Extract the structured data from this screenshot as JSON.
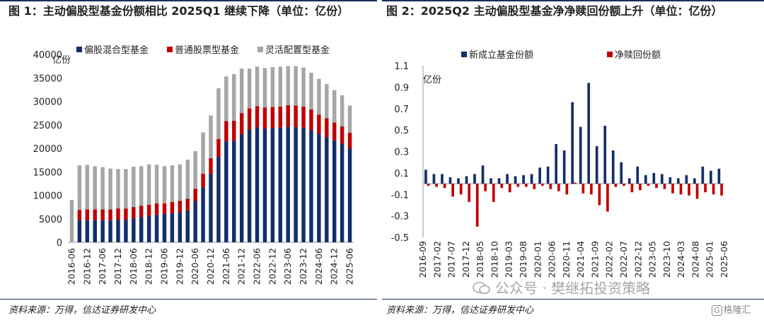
{
  "chart_data": [
    {
      "type": "bar",
      "stacked": true,
      "title": "图 1：主动偏股型基金份额相比 2025Q1 继续下降（单位：亿份）",
      "ylabel": "亿份",
      "ylim": [
        0,
        40000
      ],
      "yticks": [
        "0",
        "5000",
        "10000",
        "15000",
        "20000",
        "25000",
        "30000",
        "35000",
        "40000"
      ],
      "xticks": [
        "2016-06",
        "2016-12",
        "2017-06",
        "2017-12",
        "2018-06",
        "2018-12",
        "2019-06",
        "2019-12",
        "2020-06",
        "2020-12",
        "2021-06",
        "2021-12",
        "2022-06",
        "2022-12",
        "2023-06",
        "2023-12",
        "2024-06",
        "2024-12",
        "2025-06"
      ],
      "legend_position": "top",
      "categories": [
        "2016-06",
        "2016-09",
        "2016-12",
        "2017-03",
        "2017-06",
        "2017-09",
        "2017-12",
        "2018-03",
        "2018-06",
        "2018-09",
        "2018-12",
        "2019-03",
        "2019-06",
        "2019-09",
        "2019-12",
        "2020-03",
        "2020-06",
        "2020-09",
        "2020-12",
        "2021-03",
        "2021-06",
        "2021-09",
        "2021-12",
        "2022-03",
        "2022-06",
        "2022-09",
        "2022-12",
        "2023-03",
        "2023-06",
        "2023-09",
        "2023-12",
        "2024-03",
        "2024-06",
        "2024-09",
        "2024-12",
        "2025-03",
        "2025-06"
      ],
      "series": [
        {
          "name": "偏股混合型基金",
          "color": "#132e6b",
          "values": [
            0,
            4700,
            4700,
            4700,
            4700,
            4700,
            4800,
            4800,
            5100,
            5400,
            5600,
            5900,
            6000,
            6200,
            6400,
            6800,
            8800,
            11700,
            14600,
            18200,
            21500,
            21600,
            23000,
            24000,
            24500,
            24200,
            24300,
            24400,
            24600,
            24500,
            24400,
            23900,
            23100,
            22400,
            21700,
            21000,
            20000
          ]
        },
        {
          "name": "普通股票型基金",
          "color": "#c00000",
          "values": [
            0,
            2200,
            2300,
            2300,
            2300,
            2300,
            2400,
            2400,
            2400,
            2400,
            2400,
            2400,
            2300,
            2400,
            2400,
            2500,
            2600,
            2900,
            3300,
            3800,
            4300,
            4300,
            4500,
            4500,
            4500,
            4500,
            4500,
            4500,
            4600,
            4600,
            4500,
            4400,
            4100,
            4000,
            3800,
            3700,
            3300
          ]
        },
        {
          "name": "灵活配置型基金",
          "color": "#a6a6a6",
          "values": [
            9000,
            9500,
            9500,
            9200,
            9000,
            8700,
            8400,
            8400,
            8600,
            8400,
            8600,
            8200,
            7900,
            7800,
            7800,
            8300,
            8000,
            8800,
            9100,
            10800,
            9500,
            9900,
            9500,
            8500,
            8400,
            8400,
            8500,
            8500,
            8300,
            8400,
            8300,
            7800,
            7600,
            7300,
            6900,
            6600,
            5800
          ]
        }
      ]
    },
    {
      "type": "bar",
      "title": "图 2：2025Q2 主动偏股型基金净净赎回份额上升（单位：亿份）",
      "ylabel": "亿份",
      "ylim": [
        -0.5,
        1.1
      ],
      "yticks": [
        "1.1",
        "0.9",
        "0.7",
        "0.5",
        "0.3",
        "0.1",
        "-0.1",
        "-0.3",
        "-0.5"
      ],
      "xticks": [
        "2016-09",
        "2017-02",
        "2017-07",
        "2017-12",
        "2018-05",
        "2018-10",
        "2019-03",
        "2019-08",
        "2020-01",
        "2020-06",
        "2020-11",
        "2021-04",
        "2021-09",
        "2022-02",
        "2022-07",
        "2022-12",
        "2023-05",
        "2023-10",
        "2024-03",
        "2024-08",
        "2025-01",
        "2025-06"
      ],
      "legend_position": "top",
      "series": [
        {
          "name": "新成立基金份额",
          "color": "#132e6b",
          "values": [
            0.13,
            0.09,
            0.09,
            0.06,
            0.05,
            0.07,
            0.09,
            0.17,
            0.05,
            0.05,
            0.09,
            0.07,
            0.08,
            0.09,
            0.15,
            0.16,
            0.37,
            0.31,
            0.76,
            0.53,
            0.94,
            0.35,
            0.54,
            0.31,
            0.2,
            0.05,
            0.16,
            0.08,
            0.1,
            0.09,
            0.06,
            0.05,
            0.08,
            0.05,
            0.16,
            0.12,
            0.14
          ]
        },
        {
          "name": "净赎回份额",
          "color": "#c00000",
          "values": [
            -0.02,
            -0.03,
            -0.04,
            -0.12,
            -0.1,
            -0.17,
            -0.4,
            -0.07,
            -0.17,
            -0.04,
            -0.08,
            -0.03,
            -0.03,
            -0.05,
            -0.02,
            -0.05,
            -0.07,
            -0.1,
            0.01,
            -0.09,
            -0.1,
            -0.2,
            -0.26,
            -0.03,
            -0.02,
            -0.08,
            -0.06,
            -0.02,
            -0.04,
            -0.05,
            -0.09,
            -0.1,
            -0.11,
            -0.14,
            -0.08,
            -0.1,
            -0.11
          ]
        }
      ]
    }
  ],
  "source_left": "资料来源：万得，信达证券研发中心",
  "source_right": "资料来源：万得，信达证券研发中心",
  "watermark": "公众号 · 樊继拓投资策略",
  "logo_box": "G",
  "logo_text": "格隆汇"
}
